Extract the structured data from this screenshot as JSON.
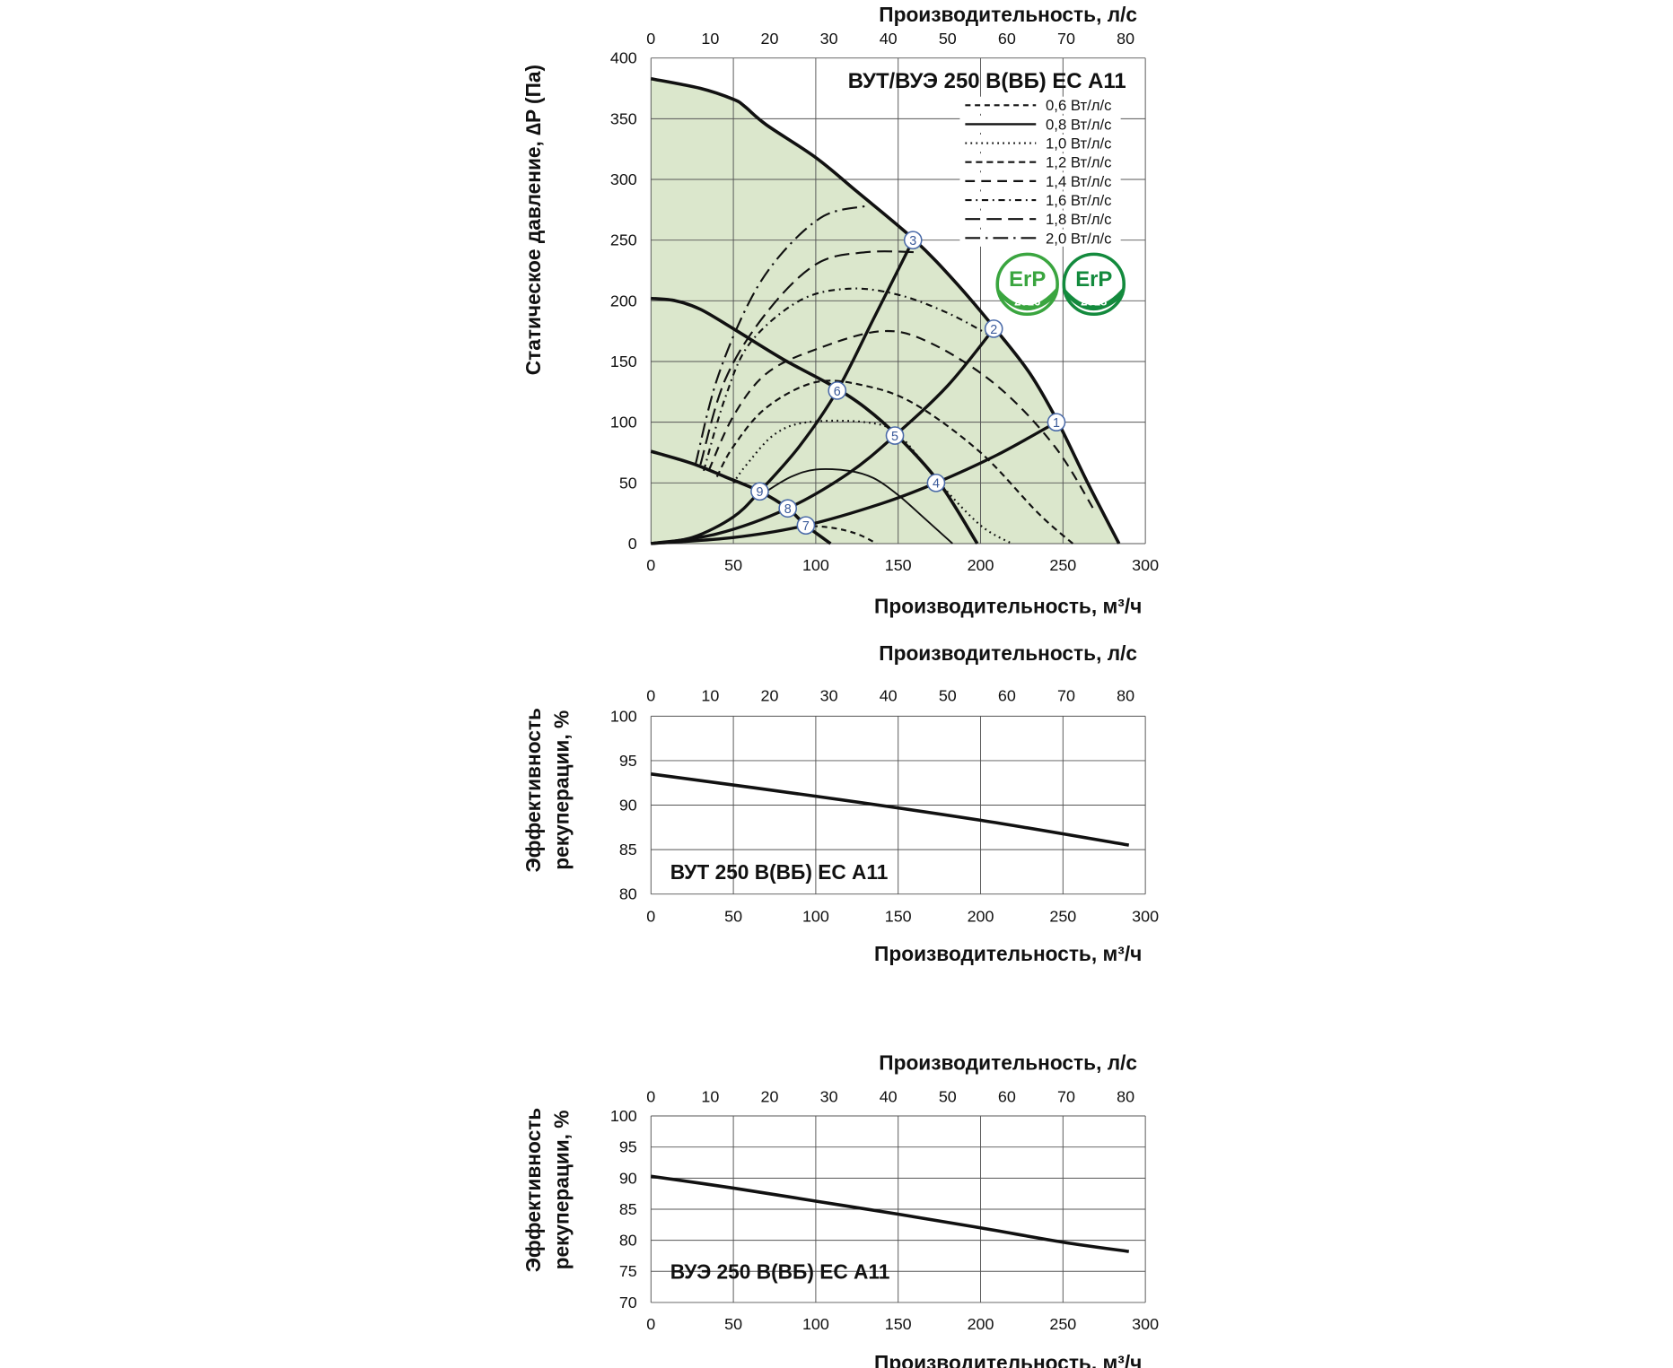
{
  "chart_data": [
    {
      "type": "line",
      "title": "ВУТ/ВУЭ 250 В(ВБ) ЕС А11",
      "xlabel": "Производительность, м³/ч",
      "x2label": "Производительность, л/с",
      "ylabel": "Статическое давление, ∆P (Па)",
      "xlim": [
        0,
        300
      ],
      "ylim": [
        0,
        400
      ],
      "xticks": [
        0,
        50,
        100,
        150,
        200,
        250,
        300
      ],
      "x2ticks": [
        0,
        10,
        20,
        30,
        40,
        50,
        60,
        70,
        80
      ],
      "yticks": [
        0,
        50,
        100,
        150,
        200,
        250,
        300,
        350,
        400
      ],
      "grid": true,
      "fill_color": "#dbe7cc",
      "fan_curves": [
        {
          "x": [
            0,
            30,
            50,
            57,
            70,
            100,
            125,
            160,
            185,
            210,
            230,
            247,
            265,
            284
          ],
          "y": [
            383,
            375,
            366,
            360,
            345,
            318,
            290,
            250,
            215,
            175,
            140,
            100,
            50,
            0
          ]
        },
        {
          "x": [
            0,
            15,
            30,
            50,
            80,
            110,
            130,
            150,
            175,
            198
          ],
          "y": [
            202,
            200,
            193,
            177,
            152,
            130,
            112,
            88,
            50,
            0
          ]
        },
        {
          "x": [
            0,
            25,
            45,
            66,
            83,
            94,
            109
          ],
          "y": [
            76,
            66,
            55,
            43,
            29,
            15,
            0
          ]
        }
      ],
      "system_curves": [
        {
          "x": [
            0,
            50,
            94,
            140,
            173,
            210,
            246
          ],
          "y": [
            0,
            5,
            15,
            33,
            50,
            73,
            100
          ]
        },
        {
          "x": [
            0,
            40,
            83,
            120,
            148,
            180,
            208
          ],
          "y": [
            0,
            8,
            29,
            58,
            89,
            130,
            177
          ]
        },
        {
          "x": [
            0,
            25,
            50,
            66,
            90,
            113,
            135,
            159
          ],
          "y": [
            0,
            5,
            22,
            43,
            80,
            126,
            185,
            250
          ]
        }
      ],
      "sfp_series": [
        {
          "name": "0,6 Вт/л/с",
          "style": "dash-small",
          "x": [
            92,
            110,
            125,
            137
          ],
          "y": [
            15,
            13,
            8,
            0
          ]
        },
        {
          "name": "0,8 Вт/л/с",
          "style": "solid-thin",
          "x": [
            70,
            85,
            100,
            120,
            135,
            150,
            165,
            183
          ],
          "y": [
            43,
            55,
            61,
            60,
            54,
            40,
            22,
            0
          ]
        },
        {
          "name": "1,0 Вт/л/с",
          "style": "dotted",
          "x": [
            50,
            58,
            75,
            95,
            130,
            150,
            175,
            200,
            219
          ],
          "y": [
            50,
            65,
            90,
            100,
            100,
            90,
            50,
            15,
            0
          ]
        },
        {
          "name": "1,2 Вт/л/с",
          "style": "dash",
          "x": [
            40,
            50,
            70,
            100,
            130,
            160,
            200,
            235,
            256
          ],
          "y": [
            55,
            80,
            112,
            133,
            130,
            115,
            75,
            25,
            0
          ]
        },
        {
          "name": "1,4 Вт/л/с",
          "style": "dash-medium",
          "x": [
            35,
            50,
            70,
            100,
            140,
            170,
            210,
            245,
            270
          ],
          "y": [
            60,
            105,
            140,
            160,
            175,
            165,
            130,
            80,
            25
          ]
        },
        {
          "name": "1,6 Вт/л/с",
          "style": "dash-dot-small",
          "x": [
            32,
            45,
            60,
            90,
            120,
            150,
            180,
            205
          ],
          "y": [
            60,
            120,
            165,
            200,
            210,
            205,
            190,
            172
          ]
        },
        {
          "name": "1,8 Вт/л/с",
          "style": "dash-long",
          "x": [
            30,
            45,
            70,
            100,
            130,
            162
          ],
          "y": [
            65,
            135,
            190,
            230,
            240,
            240
          ]
        },
        {
          "name": "2,0 Вт/л/с",
          "style": "dash-dot-long",
          "x": [
            27,
            40,
            60,
            80,
            105,
            130
          ],
          "y": [
            65,
            135,
            200,
            240,
            270,
            278
          ]
        }
      ],
      "points": [
        {
          "label": "1",
          "x": 246,
          "y": 100
        },
        {
          "label": "2",
          "x": 208,
          "y": 177
        },
        {
          "label": "3",
          "x": 159,
          "y": 250
        },
        {
          "label": "4",
          "x": 173,
          "y": 50
        },
        {
          "label": "5",
          "x": 148,
          "y": 89
        },
        {
          "label": "6",
          "x": 113,
          "y": 126
        },
        {
          "label": "7",
          "x": 94,
          "y": 15
        },
        {
          "label": "8",
          "x": 83,
          "y": 29
        },
        {
          "label": "9",
          "x": 66,
          "y": 43
        }
      ],
      "logos": [
        {
          "text": "ErP",
          "year": "2016",
          "color": "#3aa53f"
        },
        {
          "text": "ErP",
          "year": "2018",
          "color": "#138a3d"
        }
      ]
    },
    {
      "type": "line",
      "title": "ВУТ 250 В(ВБ) ЕС А11",
      "xlabel": "Производительность, м³/ч",
      "x2label": "Производительность, л/с",
      "ylabel": [
        "Эффективность",
        "рекуперации, %"
      ],
      "xlim": [
        0,
        300
      ],
      "ylim": [
        80,
        100
      ],
      "xticks": [
        0,
        50,
        100,
        150,
        200,
        250,
        300
      ],
      "x2ticks": [
        0,
        10,
        20,
        30,
        40,
        50,
        60,
        70,
        80
      ],
      "yticks": [
        80,
        85,
        90,
        95,
        100
      ],
      "grid": true,
      "series": [
        {
          "x": [
            0,
            100,
            200,
            290
          ],
          "y": [
            93.5,
            91,
            88.3,
            85.5
          ]
        }
      ]
    },
    {
      "type": "line",
      "title": "ВУЭ 250 В(ВБ) ЕС А11",
      "xlabel": "Производительность, м³/ч",
      "x2label": "Производительность, л/с",
      "ylabel": [
        "Эффективность",
        "рекуперации, %"
      ],
      "xlim": [
        0,
        300
      ],
      "ylim": [
        70,
        100
      ],
      "xticks": [
        0,
        50,
        100,
        150,
        200,
        250,
        300
      ],
      "x2ticks": [
        0,
        10,
        20,
        30,
        40,
        50,
        60,
        70,
        80
      ],
      "yticks": [
        70,
        75,
        80,
        85,
        90,
        95,
        100
      ],
      "grid": true,
      "series": [
        {
          "x": [
            0,
            50,
            100,
            150,
            200,
            250,
            290
          ],
          "y": [
            90.3,
            88.4,
            86.3,
            84.2,
            82,
            79.7,
            78.2
          ]
        }
      ]
    }
  ]
}
